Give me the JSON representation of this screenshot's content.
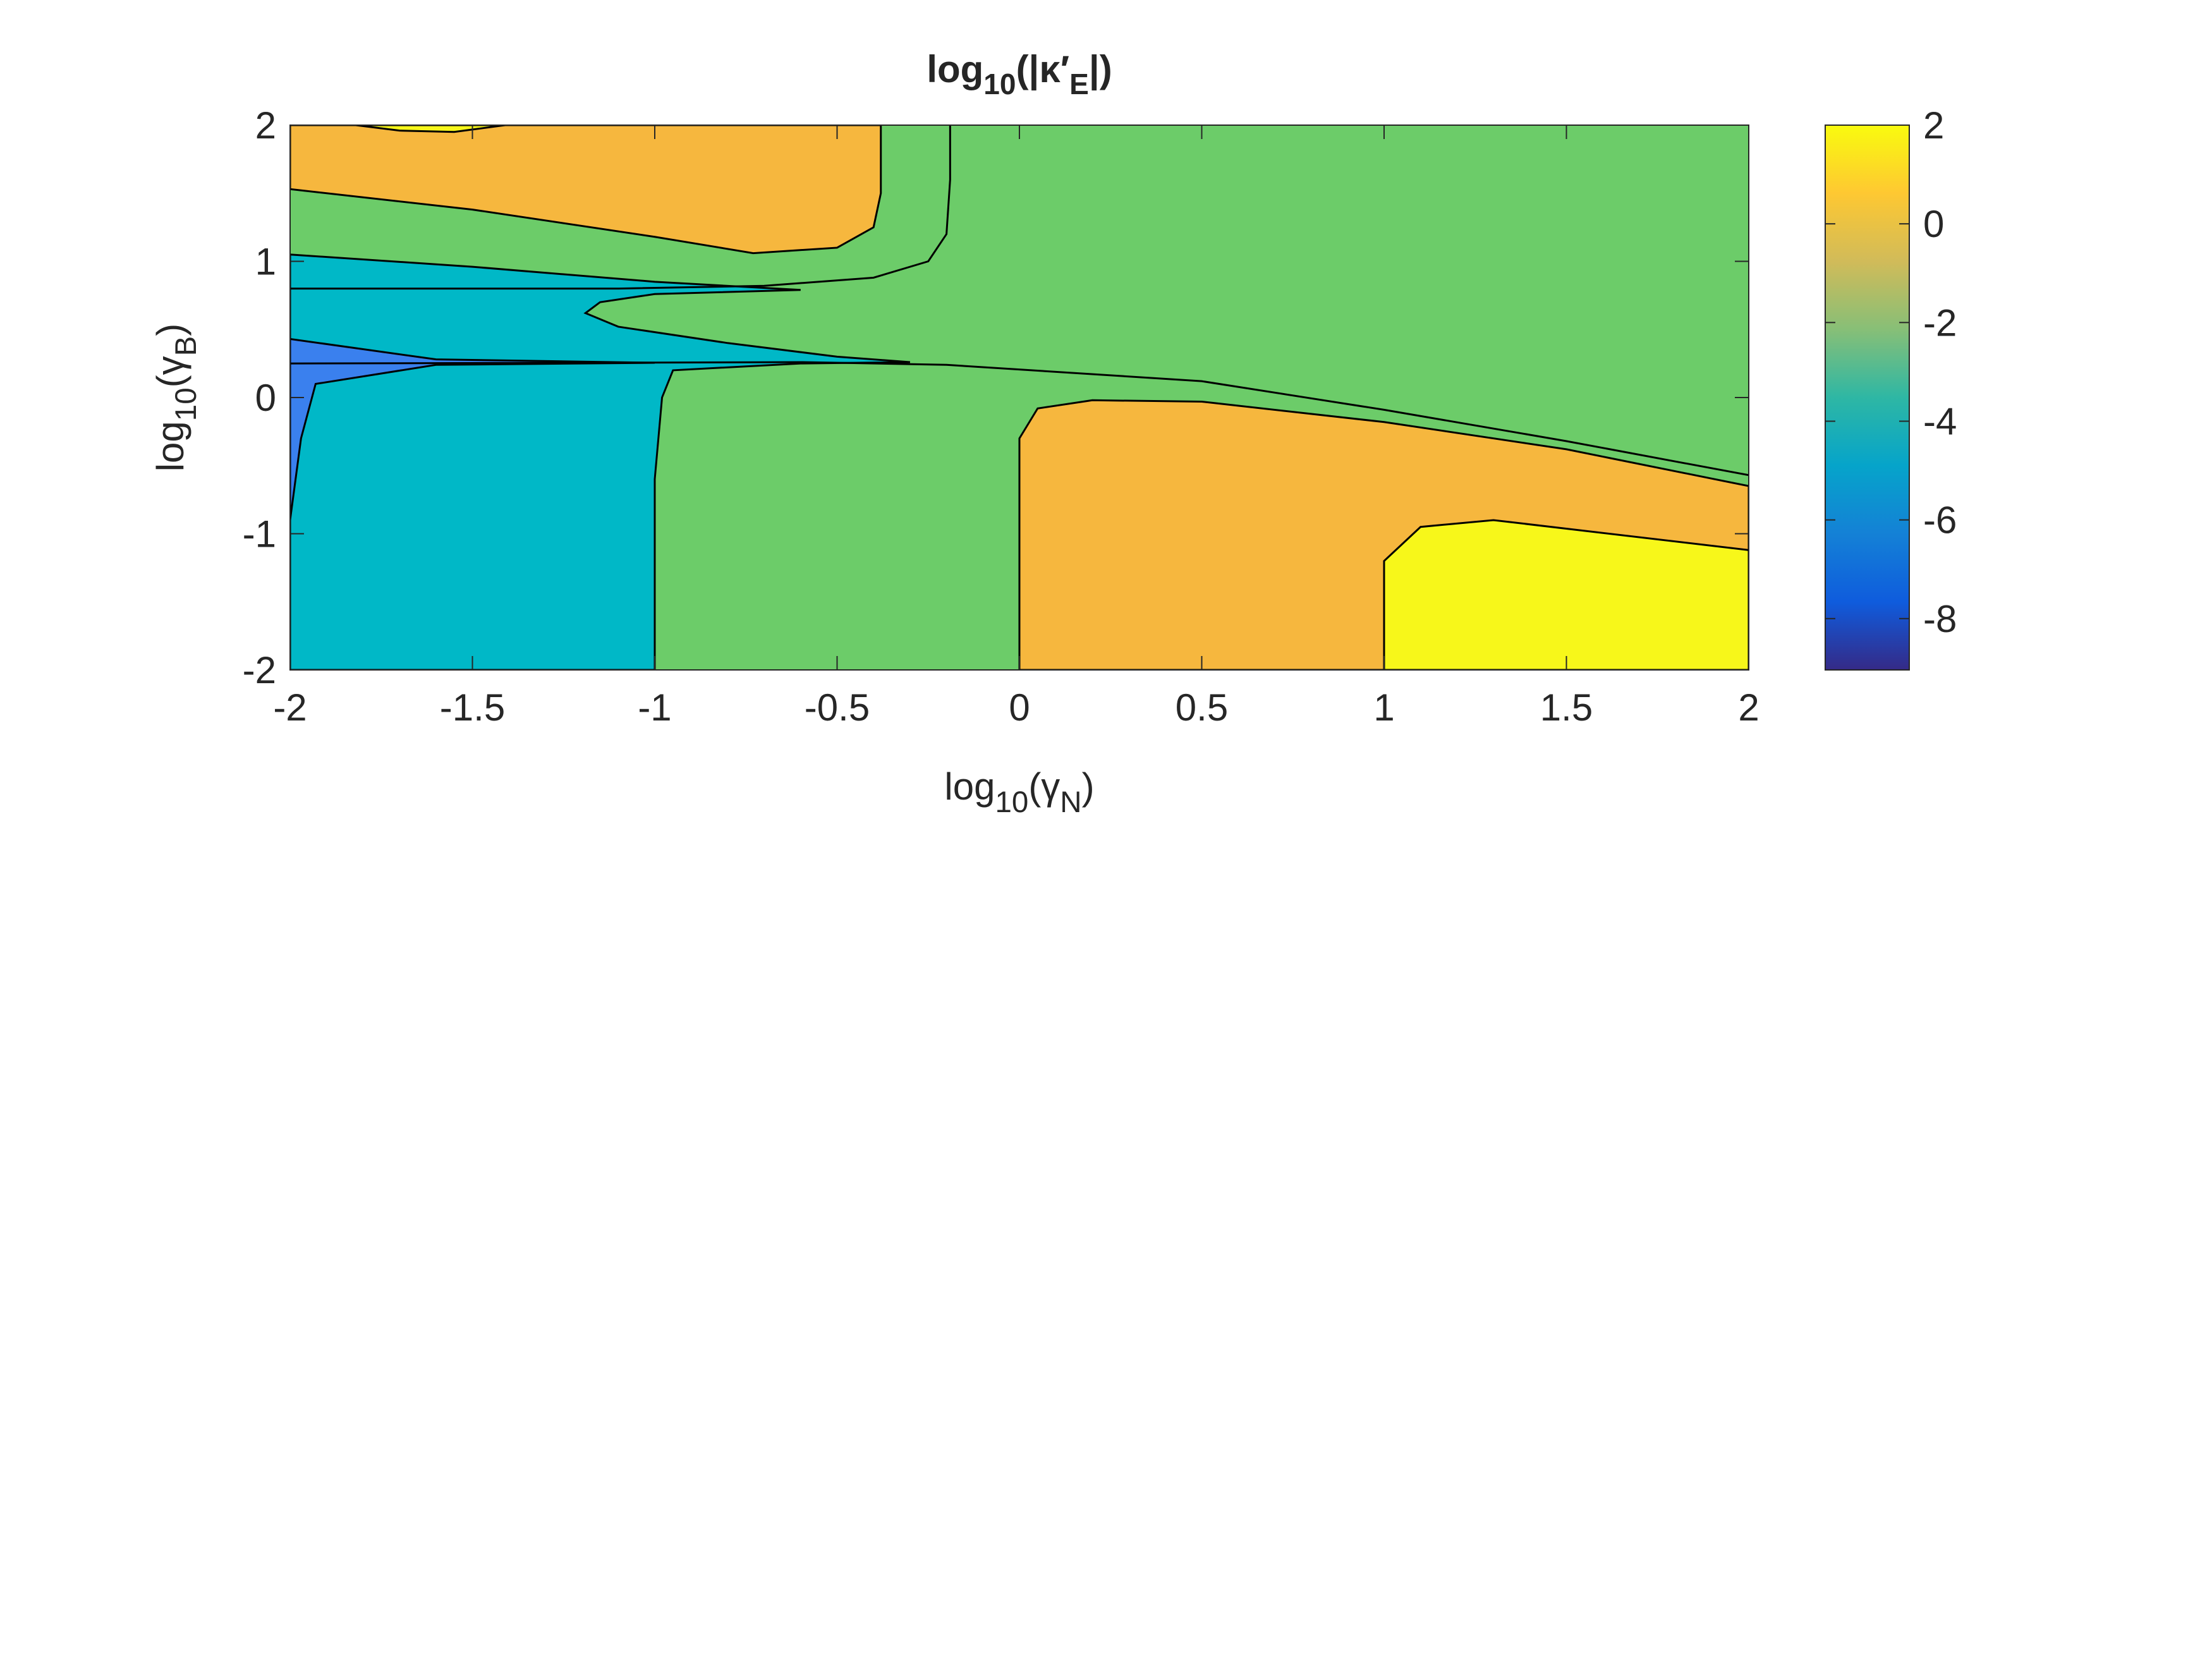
{
  "chart_data": {
    "type": "contour",
    "title": [
      {
        "text": "log"
      },
      {
        "text": "10",
        "sub": true
      },
      {
        "text": "(|κ′"
      },
      {
        "text": "E",
        "sub": true
      },
      {
        "text": "|)"
      }
    ],
    "xlabel": [
      {
        "text": "log"
      },
      {
        "text": "10",
        "sub": true
      },
      {
        "text": "(γ"
      },
      {
        "text": "N",
        "sub": true
      },
      {
        "text": ")"
      }
    ],
    "ylabel": [
      {
        "text": "log"
      },
      {
        "text": "10",
        "sub": true
      },
      {
        "text": "(γ"
      },
      {
        "text": "B",
        "sub": true
      },
      {
        "text": ")"
      }
    ],
    "xlim": [
      -2,
      2
    ],
    "ylim": [
      -2,
      2
    ],
    "xticks": [
      -2,
      -1.5,
      -1,
      -0.5,
      0,
      0.5,
      1,
      1.5,
      2
    ],
    "yticks": [
      -2,
      -1,
      0,
      1,
      2
    ],
    "background": {
      "level": -2,
      "color": "#6ccc69"
    },
    "regions": [
      {
        "level": 0,
        "color": "#f6b73e",
        "x": [
          -2,
          -2,
          -1.5,
          -1.0,
          -0.73,
          -0.5,
          -0.4,
          -0.38,
          -0.38
        ],
        "y": [
          2,
          1.53,
          1.38,
          1.18,
          1.06,
          1.1,
          1.25,
          1.5,
          2
        ]
      },
      {
        "level": 2,
        "color": "#f7f71a",
        "x": [
          -1.82,
          -1.7,
          -1.55,
          -1.41
        ],
        "y": [
          2,
          1.96,
          1.95,
          2
        ]
      },
      {
        "level": -4,
        "color": "#00b8c7",
        "x": [
          -2,
          -1.5,
          -1.0,
          -0.6,
          -1.0,
          -1.15,
          -1.19,
          -1.1,
          -0.8,
          -0.5,
          -0.3,
          -0.6,
          -0.95,
          -0.98,
          -1,
          -1,
          -2
        ],
        "y": [
          1.05,
          0.96,
          0.85,
          0.79,
          0.76,
          0.7,
          0.62,
          0.52,
          0.4,
          0.3,
          0.26,
          0.25,
          0.2,
          0,
          -0.6,
          -2,
          -2
        ]
      },
      {
        "level": -6,
        "color": "#3a80ee",
        "x": [
          -2,
          -1.6,
          -1,
          -1.6,
          -1.93,
          -1.97,
          -2
        ],
        "y": [
          0.43,
          0.28,
          0.255,
          0.24,
          0.1,
          -0.3,
          -0.9
        ]
      },
      {
        "level": 0,
        "color": "#f6b73e",
        "x": [
          0,
          0,
          0.05,
          0.2,
          0.5,
          1,
          1.5,
          2,
          2
        ],
        "y": [
          -2,
          -0.3,
          -0.08,
          -0.02,
          -0.03,
          -0.18,
          -0.38,
          -0.65,
          -2
        ]
      },
      {
        "level": 2,
        "color": "#f7f71a",
        "x": [
          1,
          1,
          1.1,
          1.3,
          2,
          2
        ],
        "y": [
          -2,
          -1.2,
          -0.95,
          -0.9,
          -1.12,
          -2
        ]
      }
    ],
    "lines": [
      {
        "x": [
          -0.19,
          -0.19,
          -0.2,
          -0.25,
          -0.4,
          -0.7,
          -1.1,
          -1.6,
          -2
        ],
        "y": [
          2,
          1.6,
          1.2,
          1.0,
          0.88,
          0.82,
          0.8,
          0.8,
          0.8
        ]
      },
      {
        "x": [
          -2,
          -1.2,
          -0.6,
          -0.2,
          0.5,
          1.0,
          1.5,
          2
        ],
        "y": [
          0.25,
          0.255,
          0.26,
          0.24,
          0.12,
          -0.09,
          -0.32,
          -0.57
        ]
      }
    ],
    "colorbar": {
      "clim": [
        -9.04,
        2
      ],
      "ticks": [
        -8,
        -6,
        -4,
        -2,
        0,
        2
      ],
      "colormap": [
        "#352a87",
        "#0f5cdd",
        "#1481d6",
        "#06a4ca",
        "#2eb7a4",
        "#87bf77",
        "#d1bb59",
        "#fec832",
        "#f9fb0e"
      ]
    }
  }
}
